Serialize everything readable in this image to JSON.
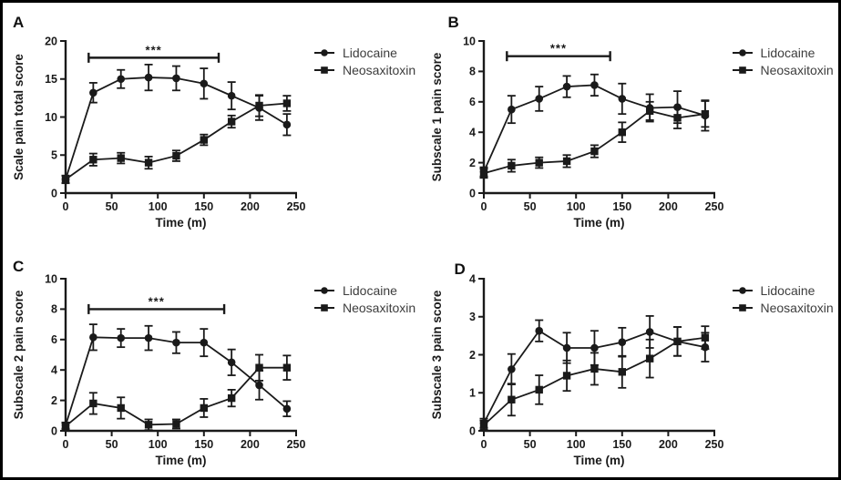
{
  "figure": {
    "background": "#ffffff",
    "border_color": "#000000",
    "ink_color": "#1a1a1a",
    "legend_text_color": "#3d3d3d"
  },
  "chart_data": [
    {
      "panel_label": "A",
      "type": "line",
      "title": "",
      "xlabel": "Time (m)",
      "ylabel": "Scale pain total score",
      "xlim": [
        0,
        250
      ],
      "ylim": [
        0,
        20
      ],
      "xticks": [
        0,
        50,
        100,
        150,
        200,
        250
      ],
      "yticks": [
        0,
        5,
        10,
        15,
        20
      ],
      "grid": false,
      "legend_position": "right",
      "x": [
        0,
        30,
        60,
        90,
        120,
        150,
        180,
        210,
        240
      ],
      "series": [
        {
          "name": "Lidocaine",
          "marker": "circle",
          "values": [
            1.8,
            13.2,
            15.0,
            15.2,
            15.1,
            14.4,
            12.8,
            11.2,
            9.0
          ],
          "errors": [
            0.5,
            1.3,
            1.2,
            1.7,
            1.6,
            2.0,
            1.8,
            1.6,
            1.4
          ]
        },
        {
          "name": "Neosaxitoxin",
          "marker": "square",
          "values": [
            1.8,
            4.4,
            4.6,
            4.0,
            4.9,
            7.0,
            9.4,
            11.5,
            11.8
          ],
          "errors": [
            0.5,
            0.8,
            0.7,
            0.8,
            0.7,
            0.7,
            0.8,
            1.4,
            1.0
          ]
        }
      ],
      "significance": {
        "label": "***",
        "x_start": 25,
        "x_end": 166,
        "y": 17.8
      }
    },
    {
      "panel_label": "B",
      "type": "line",
      "title": "",
      "xlabel": "Time (m)",
      "ylabel": "Subscale 1 pain score",
      "xlim": [
        0,
        250
      ],
      "ylim": [
        0,
        10
      ],
      "xticks": [
        0,
        50,
        100,
        150,
        200,
        250
      ],
      "yticks": [
        0,
        2,
        4,
        6,
        8,
        10
      ],
      "grid": false,
      "legend_position": "right",
      "x": [
        0,
        30,
        60,
        90,
        120,
        150,
        180,
        210,
        240
      ],
      "series": [
        {
          "name": "Lidocaine",
          "marker": "circle",
          "values": [
            1.4,
            5.5,
            6.2,
            7.0,
            7.1,
            6.2,
            5.6,
            5.65,
            5.1
          ],
          "errors": [
            0.3,
            0.9,
            0.8,
            0.7,
            0.7,
            1.0,
            0.9,
            1.05,
            1.0
          ]
        },
        {
          "name": "Neosaxitoxin",
          "marker": "square",
          "values": [
            1.3,
            1.8,
            2.0,
            2.1,
            2.75,
            4.0,
            5.4,
            4.95,
            5.2
          ],
          "errors": [
            0.3,
            0.4,
            0.35,
            0.4,
            0.4,
            0.65,
            0.6,
            0.7,
            0.85
          ]
        }
      ],
      "significance": {
        "label": "***",
        "x_start": 25,
        "x_end": 137,
        "y": 9.0
      }
    },
    {
      "panel_label": "C",
      "type": "line",
      "title": "",
      "xlabel": "Time (m)",
      "ylabel": "Subscale 2 pain score",
      "xlim": [
        0,
        250
      ],
      "ylim": [
        0,
        10
      ],
      "xticks": [
        0,
        50,
        100,
        150,
        200,
        250
      ],
      "yticks": [
        0,
        2,
        4,
        6,
        8,
        10
      ],
      "grid": false,
      "legend_position": "right",
      "x": [
        0,
        30,
        60,
        90,
        120,
        150,
        180,
        210,
        240
      ],
      "series": [
        {
          "name": "Lidocaine",
          "marker": "circle",
          "values": [
            0.35,
            6.15,
            6.1,
            6.1,
            5.8,
            5.8,
            4.5,
            3.0,
            1.45
          ],
          "errors": [
            0.2,
            0.85,
            0.6,
            0.8,
            0.7,
            0.9,
            0.85,
            0.95,
            0.5
          ]
        },
        {
          "name": "Neosaxitoxin",
          "marker": "square",
          "values": [
            0.3,
            1.8,
            1.5,
            0.4,
            0.45,
            1.5,
            2.15,
            4.15,
            4.15
          ],
          "errors": [
            0.2,
            0.7,
            0.7,
            0.35,
            0.3,
            0.6,
            0.55,
            0.85,
            0.8
          ]
        }
      ],
      "significance": {
        "label": "***",
        "x_start": 25,
        "x_end": 172,
        "y": 8.0
      }
    },
    {
      "panel_label": "D",
      "type": "line",
      "title": "",
      "xlabel": "Time (m)",
      "ylabel": "Subscale 3 pain score",
      "xlim": [
        0,
        250
      ],
      "ylim": [
        0,
        4
      ],
      "xticks": [
        0,
        50,
        100,
        150,
        200,
        250
      ],
      "yticks": [
        0,
        1,
        2,
        3,
        4
      ],
      "grid": false,
      "legend_position": "right",
      "x": [
        0,
        30,
        60,
        90,
        120,
        150,
        180,
        210,
        240
      ],
      "series": [
        {
          "name": "Lidocaine",
          "marker": "circle",
          "values": [
            0.2,
            1.62,
            2.63,
            2.18,
            2.18,
            2.33,
            2.6,
            2.35,
            2.2
          ],
          "errors": [
            0.12,
            0.4,
            0.28,
            0.4,
            0.45,
            0.38,
            0.42,
            0.38,
            0.38
          ]
        },
        {
          "name": "Neosaxitoxin",
          "marker": "square",
          "values": [
            0.15,
            0.82,
            1.08,
            1.45,
            1.63,
            1.55,
            1.9,
            2.35,
            2.45
          ],
          "errors": [
            0.12,
            0.42,
            0.38,
            0.4,
            0.42,
            0.42,
            0.5,
            0.38,
            0.3
          ]
        }
      ],
      "significance": null
    }
  ]
}
